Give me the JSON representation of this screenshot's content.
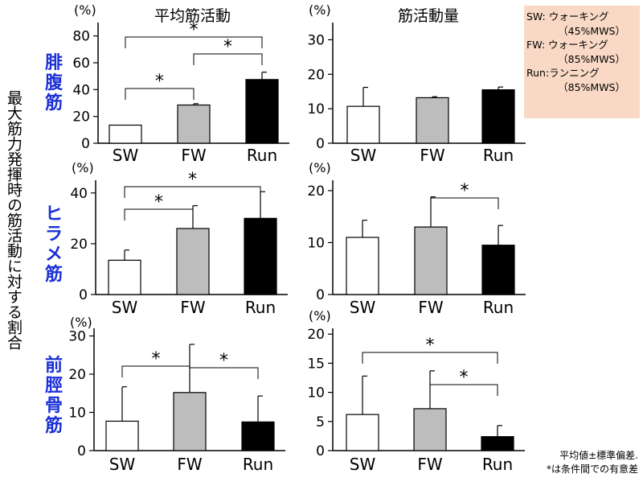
{
  "vertical_label": "最大筋力発揮時の筋活動に対する割合",
  "column_titles": {
    "mean": "平均筋活動",
    "total": "筋活動量"
  },
  "muscles": [
    {
      "id": "gastrocnemius",
      "chars": [
        "腓",
        "腹",
        "筋"
      ]
    },
    {
      "id": "soleus",
      "chars": [
        "ヒ",
        "ラ",
        "メ",
        "筋"
      ]
    },
    {
      "id": "tibialis",
      "chars": [
        "前",
        "脛",
        "骨",
        "筋"
      ]
    }
  ],
  "legend": [
    {
      "label": "SW: ウォーキング",
      "detail": "（45%MWS）"
    },
    {
      "label": "FW: ウォーキング",
      "detail": "（85%MWS）"
    },
    {
      "label": "Run:ランニング",
      "detail": "（85%MWS）"
    }
  ],
  "footnote": {
    "line1": "平均値±標準偏差.",
    "line2": "*は条件間での有意差"
  },
  "colors": {
    "sw_fill": "#ffffff",
    "fw_fill": "#bdbdbd",
    "run_fill": "#000000",
    "muscle_label": "#1a2fd6",
    "legend_bg": "#f9d9c6"
  },
  "chart_data": [
    {
      "id": "gastro-mean",
      "type": "bar",
      "ylabel": "(%)",
      "ylim": [
        0,
        90
      ],
      "yticks": [
        0,
        20,
        40,
        60,
        80
      ],
      "categories": [
        "SW",
        "FW",
        "Run"
      ],
      "values": [
        13.5,
        28.5,
        47.5
      ],
      "errors": [
        0,
        1,
        5.5
      ],
      "significance": [
        {
          "pair": [
            "SW",
            "FW"
          ],
          "label": "*"
        },
        {
          "pair": [
            "FW",
            "Run"
          ],
          "label": "*"
        },
        {
          "pair": [
            "SW",
            "Run"
          ],
          "label": "*"
        }
      ]
    },
    {
      "id": "gastro-total",
      "type": "bar",
      "ylabel": "(%)",
      "ylim": [
        0,
        35
      ],
      "yticks": [
        0,
        10,
        20,
        30
      ],
      "categories": [
        "SW",
        "FW",
        "Run"
      ],
      "values": [
        10.7,
        13.2,
        15.5
      ],
      "errors": [
        5.5,
        0.3,
        0.8
      ],
      "significance": []
    },
    {
      "id": "soleus-mean",
      "type": "bar",
      "ylabel": "(%)",
      "ylim": [
        0,
        45
      ],
      "yticks": [
        0,
        20,
        40
      ],
      "categories": [
        "SW",
        "FW",
        "Run"
      ],
      "values": [
        13.5,
        26,
        30
      ],
      "errors": [
        4,
        9,
        10.5
      ],
      "significance": [
        {
          "pair": [
            "SW",
            "FW"
          ],
          "label": "*"
        },
        {
          "pair": [
            "SW",
            "Run"
          ],
          "label": "*"
        }
      ]
    },
    {
      "id": "soleus-total",
      "type": "bar",
      "ylabel": "(%)",
      "ylim": [
        0,
        22
      ],
      "yticks": [
        0,
        10,
        20
      ],
      "categories": [
        "SW",
        "FW",
        "Run"
      ],
      "values": [
        11,
        13,
        9.5
      ],
      "errors": [
        3.3,
        5.8,
        3.8
      ],
      "significance": [
        {
          "pair": [
            "FW",
            "Run"
          ],
          "label": "*"
        }
      ]
    },
    {
      "id": "tibialis-mean",
      "type": "bar",
      "ylabel": "(%)",
      "ylim": [
        0,
        32
      ],
      "yticks": [
        0,
        10,
        20,
        30
      ],
      "categories": [
        "SW",
        "FW",
        "Run"
      ],
      "values": [
        7.7,
        15.2,
        7.5
      ],
      "errors": [
        9,
        12.6,
        6.8
      ],
      "significance": [
        {
          "pair": [
            "SW",
            "FW"
          ],
          "label": "*"
        },
        {
          "pair": [
            "FW",
            "Run"
          ],
          "label": "*"
        }
      ]
    },
    {
      "id": "tibialis-total",
      "type": "bar",
      "ylabel": "(%)",
      "ylim": [
        0,
        21
      ],
      "yticks": [
        0,
        5,
        10,
        15,
        20
      ],
      "categories": [
        "SW",
        "FW",
        "Run"
      ],
      "values": [
        6.2,
        7.2,
        2.4
      ],
      "errors": [
        6.6,
        6.5,
        1.9
      ],
      "significance": [
        {
          "pair": [
            "FW",
            "Run"
          ],
          "label": "*"
        },
        {
          "pair": [
            "SW",
            "Run"
          ],
          "label": "*"
        }
      ]
    }
  ]
}
